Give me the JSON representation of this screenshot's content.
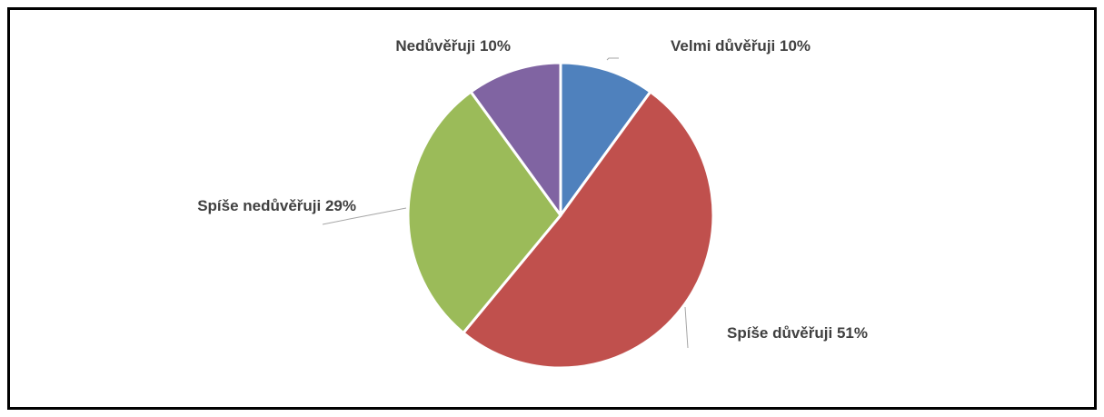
{
  "chart_data": {
    "type": "pie",
    "categories": [
      "Velmi důvěřuji",
      "Spíše důvěřuji",
      "Spíše nedůvěřuji",
      "Nedůvěřuji"
    ],
    "values": [
      10,
      51,
      29,
      10
    ],
    "value_labels": [
      "10%",
      "51%",
      "29%",
      "10%"
    ],
    "colors": [
      "#4f81bd",
      "#c0504d",
      "#9bbb59",
      "#8064a2"
    ]
  }
}
